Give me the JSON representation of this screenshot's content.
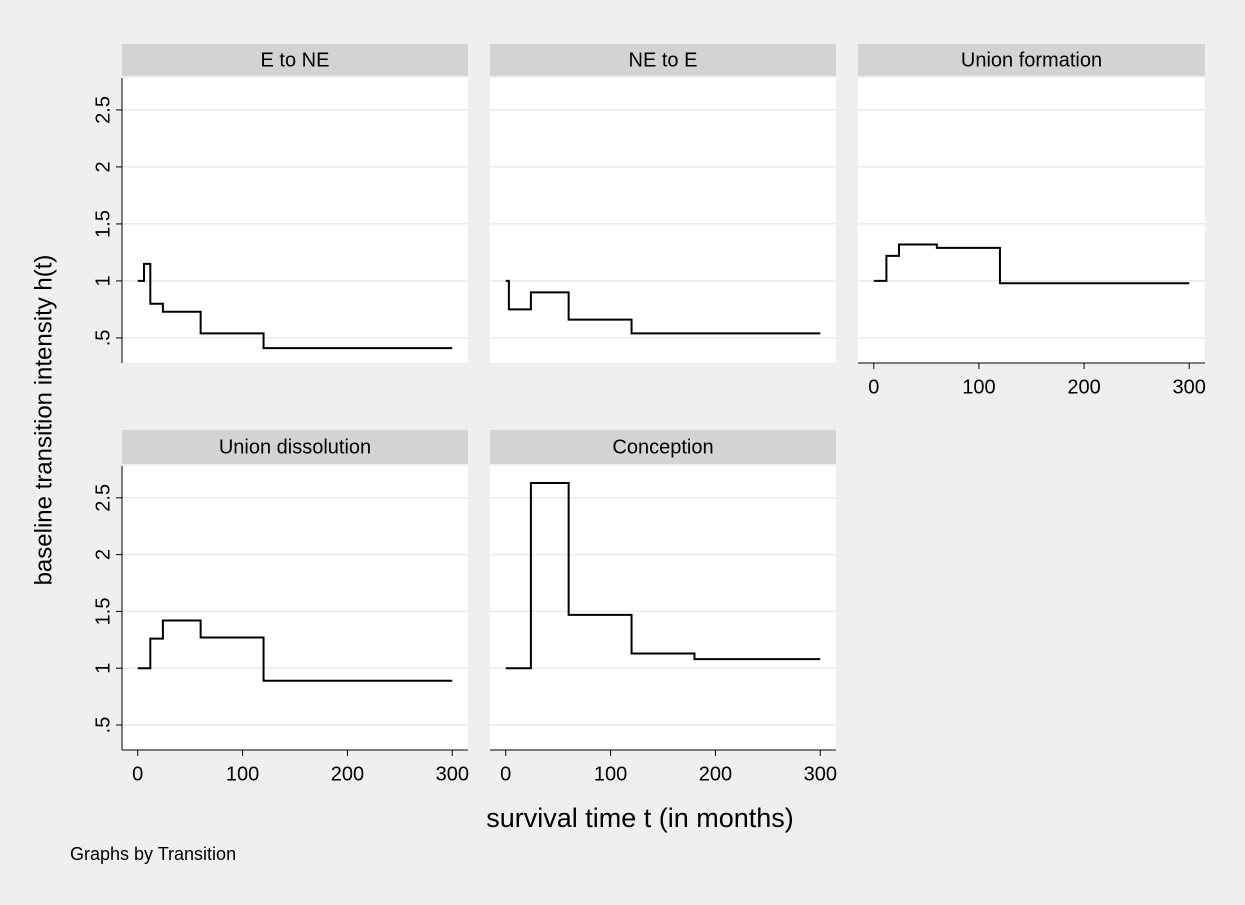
{
  "y_label": "baseline transition intensity h(t)",
  "x_label": "survival time t (in months)",
  "note": "Graphs by Transition",
  "chart_data": [
    {
      "type": "line",
      "title": "E to NE",
      "y_axis": true,
      "x": [
        0,
        6,
        6,
        12,
        12,
        24,
        24,
        60,
        60,
        120,
        120,
        300
      ],
      "values": [
        1,
        1,
        1.15,
        1.15,
        0.8,
        0.8,
        0.73,
        0.73,
        0.54,
        0.54,
        0.41,
        0.41
      ],
      "color": "#000000",
      "xlim": [
        -15,
        315
      ],
      "ylim": [
        0.28,
        2.78
      ],
      "yticks": [
        {
          "value": 0.5,
          "label": ".5"
        },
        1,
        1.5,
        2,
        2.5
      ],
      "grid": true
    },
    {
      "type": "line",
      "title": "NE to E",
      "y_axis": false,
      "x": [
        0,
        3,
        3,
        24,
        24,
        60,
        60,
        120,
        120,
        300
      ],
      "values": [
        1,
        1,
        0.75,
        0.75,
        0.9,
        0.9,
        0.66,
        0.66,
        0.54,
        0.54
      ],
      "color": "#000000",
      "xlim": [
        -15,
        315
      ],
      "ylim": [
        0.28,
        2.78
      ],
      "yticks": [
        0.5,
        1,
        1.5,
        2,
        2.5
      ],
      "grid": true
    },
    {
      "type": "line",
      "title": "Union formation",
      "y_axis": false,
      "x": [
        0,
        12,
        12,
        24,
        24,
        60,
        60,
        120,
        120,
        300
      ],
      "values": [
        1,
        1,
        1.22,
        1.22,
        1.32,
        1.32,
        1.29,
        1.29,
        0.98,
        0.98
      ],
      "color": "#000000",
      "xlim": [
        -15,
        315
      ],
      "ylim": [
        0.28,
        2.78
      ],
      "xticks": [
        0,
        100,
        200,
        300
      ],
      "yticks": [
        0.5,
        1,
        1.5,
        2,
        2.5
      ],
      "grid": true
    },
    {
      "type": "line",
      "title": "Union dissolution",
      "y_axis": true,
      "x": [
        0,
        12,
        12,
        24,
        24,
        60,
        60,
        120,
        120,
        300
      ],
      "values": [
        1,
        1,
        1.26,
        1.26,
        1.42,
        1.42,
        1.27,
        1.27,
        0.89,
        0.89
      ],
      "color": "#000000",
      "xlim": [
        -15,
        315
      ],
      "ylim": [
        0.28,
        2.78
      ],
      "xticks": [
        0,
        100,
        200,
        300
      ],
      "yticks": [
        {
          "value": 0.5,
          "label": ".5"
        },
        1,
        1.5,
        2,
        2.5
      ],
      "grid": true
    },
    {
      "type": "line",
      "title": "Conception",
      "y_axis": false,
      "x": [
        0,
        24,
        24,
        60,
        60,
        120,
        120,
        180,
        180,
        300
      ],
      "values": [
        1,
        1,
        2.63,
        2.63,
        1.47,
        1.47,
        1.13,
        1.13,
        1.08,
        1.08
      ],
      "color": "#000000",
      "xlim": [
        -15,
        315
      ],
      "ylim": [
        0.28,
        2.78
      ],
      "xticks": [
        0,
        100,
        200,
        300
      ],
      "yticks": [
        0.5,
        1,
        1.5,
        2,
        2.5
      ],
      "grid": true
    }
  ]
}
